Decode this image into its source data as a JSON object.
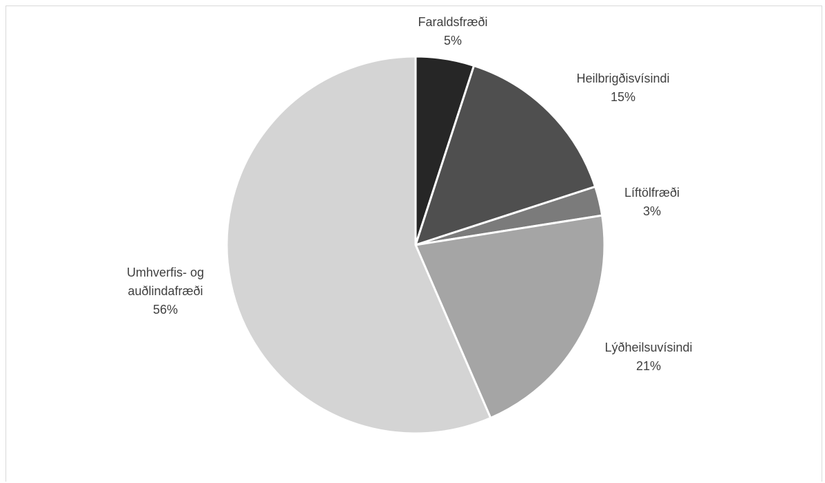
{
  "chart_data": {
    "type": "pie",
    "title": "",
    "slices": [
      {
        "label": "Faraldsfræði",
        "percent_label": "5%",
        "value": 5,
        "color": "#262626"
      },
      {
        "label": "Heilbrigðisvísindi",
        "percent_label": "15%",
        "value": 15,
        "color": "#4f4f4f"
      },
      {
        "label": "Líftölfræði",
        "percent_label": "3%",
        "value": 2.5,
        "color": "#7b7b7b"
      },
      {
        "label": "Lýðheilsuvísindi",
        "percent_label": "21%",
        "value": 21,
        "color": "#a5a5a5"
      },
      {
        "label": "Umhverfis- og auðlindafræði",
        "percent_label": "56%",
        "value": 56.5,
        "color": "#d4d4d4"
      }
    ],
    "start_angle": "12 o'clock",
    "direction": "clockwise",
    "legend": "none"
  }
}
